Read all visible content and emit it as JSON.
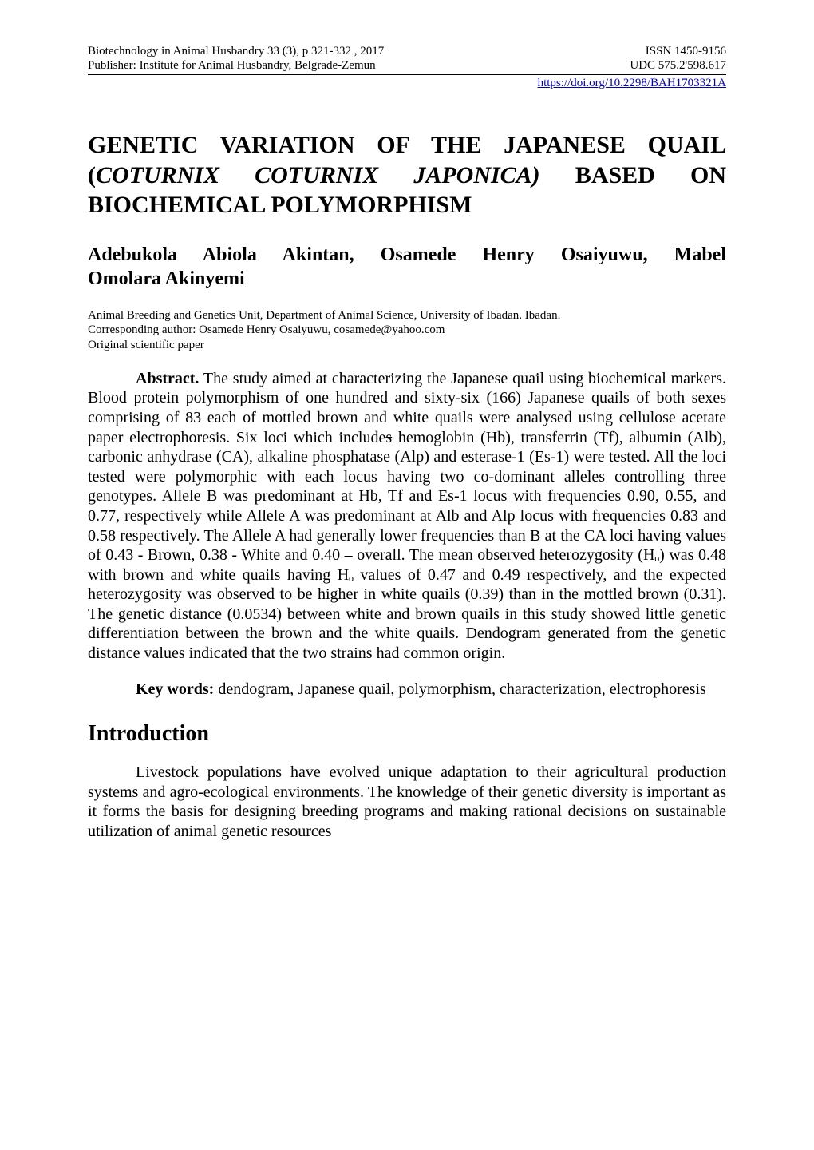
{
  "header": {
    "left_line1": "Biotechnology in Animal Husbandry 33 (3), p 321-332 , 2017",
    "left_line2": "Publisher: Institute for Animal Husbandry, Belgrade-Zemun",
    "right_line1": "ISSN 1450-9156",
    "right_line2": "UDC 575.2'598.617",
    "doi_text": "https://doi.org/10.2298/BAH1703321A"
  },
  "title": {
    "line1_pre": "GENETIC VARIATION OF THE JAPANESE QUAIL (",
    "line1_ital": "COTURNIX COTURNIX JAPONICA)",
    "line1_post": " BASED ON",
    "line2": "BIOCHEMICAL POLYMORPHISM"
  },
  "authors": {
    "line1": "Adebukola Abiola Akintan, Osamede Henry Osaiyuwu, Mabel",
    "line2": "Omolara Akinyemi"
  },
  "affil": {
    "l1": "Animal Breeding and Genetics Unit, Department of Animal Science, University of Ibadan. Ibadan.",
    "l2": "Corresponding author: Osamede Henry Osaiyuwu, cosamede@yahoo.com",
    "l3": "Original scientific paper"
  },
  "abstract": {
    "label": "Abstract.",
    "t1": " The study aimed at characterizing the Japanese quail using biochemical markers. Blood protein polymorphism of one hundred and sixty-six (166) Japanese quails of both sexes comprising of 83 each of mottled brown and white quails were analysed using cellulose acetate paper electrophoresis. Six loci which include",
    "strike": "s",
    "t2": " hemoglobin (Hb), transferrin (Tf), albumin (Alb), carbonic anhydrase (CA), alkaline phosphatase (Alp) and esterase-1 (Es-1) were tested. All the loci tested were polymorphic with each locus having two co-dominant alleles controlling three genotypes. Allele B was predominant at Hb, Tf and Es-1 locus with frequencies 0.90, 0.55, and 0.77, respectively while Allele A was predominant at Alb and Alp locus with frequencies 0.83 and 0.58 respectively. The Allele A had generally lower frequencies than B at the CA loci having values of 0.43 - Brown, 0.38 - White and 0.40 – overall. The mean observed heterozygosity (Hₒ) was 0.48 with brown and white quails having Hₒ values of 0.47 and 0.49 respectively, and the expected heterozygosity was observed to be higher in white quails (0.39) than in the mottled brown (0.31). The genetic distance (0.0534) between white and brown quails in this study showed little genetic differentiation between the brown and the white quails. Dendogram generated from the genetic distance values indicated that the two strains had common origin."
  },
  "keywords": {
    "label": "Key words:",
    "text": " dendogram, Japanese quail, polymorphism, characterization, electrophoresis"
  },
  "section_intro": "Introduction",
  "intro_p": "Livestock populations have evolved unique adaptation to their agricultural production systems and agro-ecological environments. The knowledge of their genetic diversity is important as it forms the basis for designing breeding programs and making rational decisions on sustainable utilization of animal genetic resources"
}
